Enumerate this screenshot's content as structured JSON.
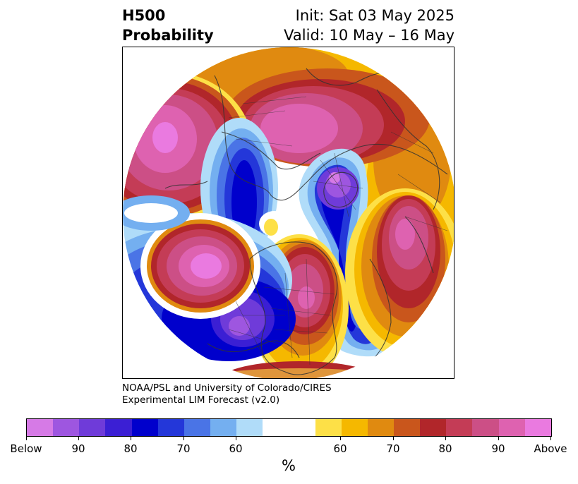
{
  "header": {
    "left_line1": "H500",
    "left_line2": "Probability",
    "right_line1": "Init: Sat 03 May 2025",
    "right_line2": "Valid: 10 May – 16 May"
  },
  "credits": {
    "line1": "NOAA/PSL and University of Colorado/CIRES",
    "line2": "Experimental LIM Forecast (v2.0)"
  },
  "colorbar": {
    "units": "%",
    "colors": [
      "#d67ae6",
      "#9e56e0",
      "#6f3bd9",
      "#3b1fd4",
      "#0000cc",
      "#2437d9",
      "#4a74e6",
      "#74aff0",
      "#b0dcf9",
      "#ffffff",
      "#ffffff",
      "#fde047",
      "#f5b800",
      "#e08a10",
      "#c9561c",
      "#b1262a",
      "#c43c56",
      "#cc4f86",
      "#de62b0",
      "#ea7ae0"
    ],
    "tick_labels": [
      "Below",
      "90",
      "80",
      "70",
      "60",
      "60",
      "70",
      "80",
      "90",
      "Above"
    ]
  }
}
